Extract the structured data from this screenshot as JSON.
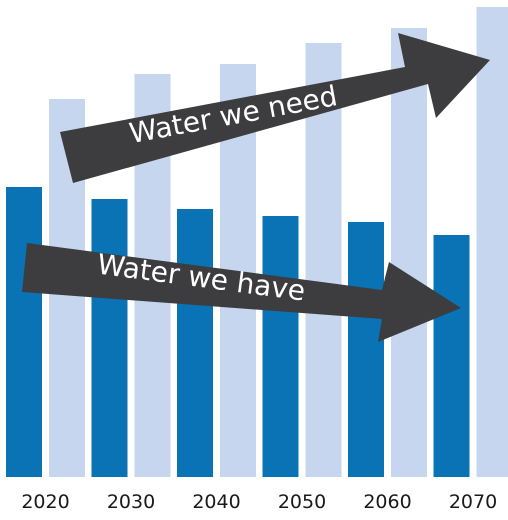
{
  "chart_data": {
    "type": "bar",
    "categories": [
      "2020",
      "2030",
      "2040",
      "2050",
      "2060",
      "2070"
    ],
    "series": [
      {
        "values": [
          290,
          278,
          268,
          261,
          255,
          242
        ]
      },
      {
        "values": [
          378,
          403,
          413,
          434,
          449,
          470
        ]
      }
    ],
    "ylim": [
      0,
      470
    ],
    "grid": false,
    "colors": [
      "#0a73b5",
      "#c5d6ee"
    ],
    "arrow_color": "#3d3d3f",
    "annotations": [
      {
        "text": "Water we need",
        "direction": "up"
      },
      {
        "text": "Water we have",
        "direction": "down"
      }
    ]
  }
}
